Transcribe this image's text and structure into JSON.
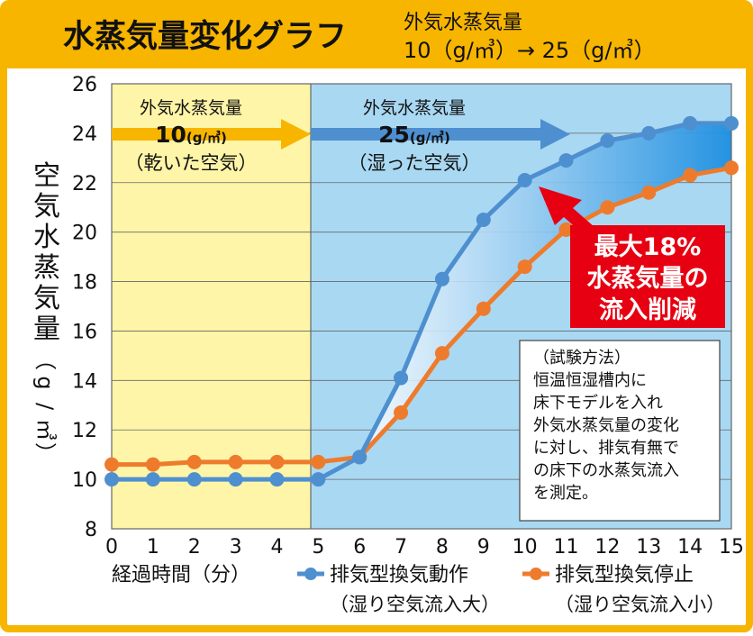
{
  "header": {
    "title": "水蒸気量変化グラフ",
    "note_line1": "外気水蒸気量",
    "note_line2": "10（g/㎥）→ 25（g/㎥）"
  },
  "zones": [
    {
      "label": "外気水蒸気量",
      "value": "10",
      "unit": "(g/㎥)",
      "desc": "（乾いた空気）"
    },
    {
      "label": "外気水蒸気量",
      "value": "25",
      "unit": "(g/㎥)",
      "desc": "（湿った空気）"
    }
  ],
  "callout": {
    "lines": [
      "最大18%",
      "水蒸気量の",
      "流入削減"
    ]
  },
  "method": {
    "lines": [
      "（試験方法）",
      "恒温恒湿槽内に",
      "床下モデルを入れ",
      "外気水蒸気量の変化",
      "に対し、排気有無で",
      "の床下の水蒸気流入",
      "を測定。"
    ]
  },
  "colors": {
    "header_bg": "#F7B500",
    "frame": "#F7B500",
    "dry_zone": "#FFF5A8",
    "humid_zone": "#A9D8F3",
    "series_blue": "#4E8FD0",
    "series_orange": "#EE7B2C",
    "callout_red": "#E60012",
    "arrow_orange": "#F7B500",
    "arrow_blue": "#4E8FD0"
  },
  "chart_data": {
    "type": "line",
    "title": "水蒸気量変化グラフ",
    "xlabel": "経過時間（分）",
    "ylabel": "空気水蒸気量（g/㎥）",
    "xlim": [
      0,
      15
    ],
    "ylim": [
      8,
      26
    ],
    "x": [
      0,
      1,
      2,
      3,
      4,
      5,
      6,
      7,
      8,
      9,
      10,
      11,
      12,
      13,
      14,
      15
    ],
    "y_ticks": [
      8,
      10,
      12,
      14,
      16,
      18,
      20,
      22,
      24,
      26
    ],
    "grid": true,
    "legend_position": "bottom",
    "series": [
      {
        "name": "排気型換気動作",
        "sub": "（湿り空気流入大）",
        "color": "#4E8FD0",
        "values": [
          10.0,
          10.0,
          10.0,
          10.0,
          10.0,
          10.0,
          10.9,
          14.1,
          18.1,
          20.5,
          22.1,
          22.9,
          23.7,
          24.0,
          24.4,
          24.4
        ]
      },
      {
        "name": "排気型換気停止",
        "sub": "（湿り空気流入小）",
        "color": "#EE7B2C",
        "values": [
          10.6,
          10.6,
          10.7,
          10.7,
          10.7,
          10.7,
          10.9,
          12.7,
          15.1,
          16.9,
          18.6,
          20.1,
          21.0,
          21.6,
          22.3,
          22.6
        ]
      }
    ]
  }
}
